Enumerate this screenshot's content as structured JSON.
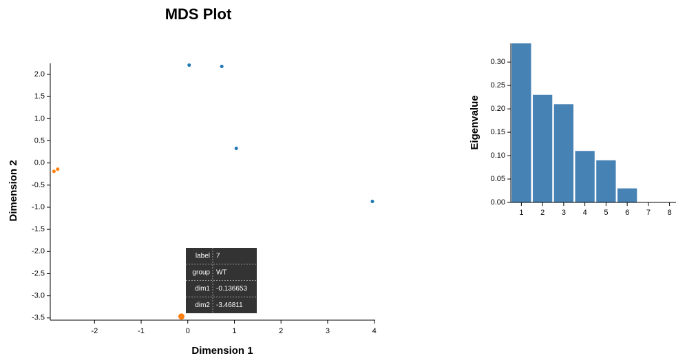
{
  "chart_data": [
    {
      "type": "scatter",
      "title": "MDS Plot",
      "x_label": "Dimension 1",
      "y_label": "Dimension 2",
      "xlim": [
        -2.95,
        4.02
      ],
      "ylim": [
        -3.55,
        2.25
      ],
      "xticks": [
        -2,
        -1,
        0,
        1,
        2,
        3,
        4
      ],
      "yticks": [
        {
          "value": 2,
          "label": "2.0"
        },
        {
          "value": 1.5,
          "label": "1.5"
        },
        {
          "value": 1,
          "label": "1.0"
        },
        {
          "value": 0.5,
          "label": "0.5"
        },
        {
          "value": 0,
          "label": "0.0"
        },
        {
          "value": -0.5,
          "label": "-0.5"
        },
        {
          "value": -1,
          "label": "-1.0"
        },
        {
          "value": -1.5,
          "label": "-1.5"
        },
        {
          "value": -2,
          "label": "-2.0"
        },
        {
          "value": -2.5,
          "label": "-2.5"
        },
        {
          "value": -3,
          "label": "-3.0"
        },
        {
          "value": -3.5,
          "label": "-3.5"
        }
      ],
      "series": [
        {
          "color": "#1f77b4",
          "x": [
            0.03,
            0.73,
            1.04,
            3.96
          ],
          "values": [
            2.21,
            2.18,
            0.33,
            -0.87
          ]
        },
        {
          "color": "#ff7f0e",
          "x": [
            -2.87,
            -2.79,
            -0.136653
          ],
          "values": [
            -0.19,
            -0.14,
            -3.46811
          ]
        }
      ],
      "tooltip": {
        "keys": [
          "label",
          "group",
          "dim1",
          "dim2"
        ],
        "label": "7",
        "group": "WT"
      }
    },
    {
      "type": "bar",
      "y_label": "Eigenvalue",
      "color": "#4682b4",
      "categories": [
        "1",
        "2",
        "3",
        "4",
        "5",
        "6",
        "7",
        "8"
      ],
      "values": [
        0.34,
        0.23,
        0.21,
        0.11,
        0.09,
        0.03,
        0,
        0
      ],
      "ylim": [
        0,
        0.34
      ],
      "yticks": [
        {
          "value": 0,
          "label": "0.00"
        },
        {
          "value": 0.05,
          "label": "0.05"
        },
        {
          "value": 0.1,
          "label": "0.10"
        },
        {
          "value": 0.15,
          "label": "0.15"
        },
        {
          "value": 0.2,
          "label": "0.20"
        },
        {
          "value": 0.25,
          "label": "0.25"
        },
        {
          "value": 0.3,
          "label": "0.30"
        }
      ]
    }
  ]
}
